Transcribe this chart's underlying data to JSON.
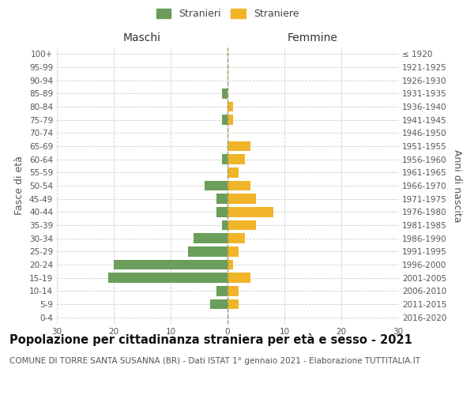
{
  "age_groups": [
    "100+",
    "95-99",
    "90-94",
    "85-89",
    "80-84",
    "75-79",
    "70-74",
    "65-69",
    "60-64",
    "55-59",
    "50-54",
    "45-49",
    "40-44",
    "35-39",
    "30-34",
    "25-29",
    "20-24",
    "15-19",
    "10-14",
    "5-9",
    "0-4"
  ],
  "birth_years": [
    "≤ 1920",
    "1921-1925",
    "1926-1930",
    "1931-1935",
    "1936-1940",
    "1941-1945",
    "1946-1950",
    "1951-1955",
    "1956-1960",
    "1961-1965",
    "1966-1970",
    "1971-1975",
    "1976-1980",
    "1981-1985",
    "1986-1990",
    "1991-1995",
    "1996-2000",
    "2001-2005",
    "2006-2010",
    "2011-2015",
    "2016-2020"
  ],
  "maschi": [
    0,
    0,
    0,
    1,
    0,
    1,
    0,
    0,
    1,
    0,
    4,
    2,
    2,
    1,
    6,
    7,
    20,
    21,
    2,
    3,
    0
  ],
  "femmine": [
    0,
    0,
    0,
    0,
    1,
    1,
    0,
    4,
    3,
    2,
    4,
    5,
    8,
    5,
    3,
    2,
    1,
    4,
    2,
    2,
    0
  ],
  "maschi_color": "#6a9e5a",
  "femmine_color": "#f0b429",
  "bg_color": "#ffffff",
  "grid_color": "#cccccc",
  "title": "Popolazione per cittadinanza straniera per età e sesso - 2021",
  "subtitle": "COMUNE DI TORRE SANTA SUSANNA (BR) - Dati ISTAT 1° gennaio 2021 - Elaborazione TUTTITALIA.IT",
  "ylabel_left": "Fasce di età",
  "ylabel_right": "Anni di nascita",
  "xlabel_left": "Maschi",
  "xlabel_top_right": "Femmine",
  "legend_maschi": "Stranieri",
  "legend_femmine": "Straniere",
  "xlim": 30,
  "bar_height": 0.75,
  "title_fontsize": 10.5,
  "subtitle_fontsize": 7.5,
  "axis_label_fontsize": 9,
  "tick_fontsize": 7.5,
  "legend_fontsize": 9
}
